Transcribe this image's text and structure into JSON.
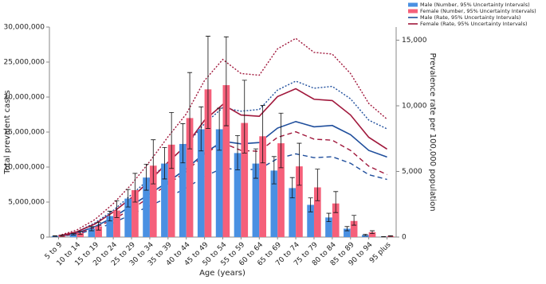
{
  "chart_data": {
    "type": "combo",
    "x_label": "Age (years)",
    "y_label": "Total prevalent cases",
    "y2_label": "Prevalence rate per 100,000 population",
    "categories": [
      "5 to 9",
      "10 to 14",
      "15 to 19",
      "20 to 24",
      "25 to 29",
      "30 to 34",
      "35 to 39",
      "40 to 44",
      "45 to 49",
      "50 to 54",
      "55 to 59",
      "60 to 64",
      "65 to 69",
      "70 to 74",
      "75 to 79",
      "80 to 84",
      "85 to 89",
      "90 to 94",
      "95 plus"
    ],
    "ylim": [
      0,
      30000000
    ],
    "yticks": [
      0,
      {
        "value": 5000000,
        "label": "5,000,000"
      },
      {
        "value": 10000000,
        "label": "10,000,000"
      },
      {
        "value": 15000000,
        "label": "15,000,000"
      },
      {
        "value": 20000000,
        "label": "20,000,000"
      },
      {
        "value": 25000000,
        "label": "25,000,000"
      },
      {
        "value": 30000000,
        "label": "30,000,000"
      }
    ],
    "y2lim": [
      0,
      16000
    ],
    "y2ticks": [
      0,
      {
        "value": 5000,
        "label": "5,000"
      },
      {
        "value": 10000,
        "label": "10,000"
      },
      {
        "value": 15000,
        "label": "15,000"
      }
    ],
    "series": [
      {
        "name": "Male (Number, 95% Uncertainty Intervals)",
        "type": "bar",
        "color": "#4a90e2",
        "values": [
          150000,
          400000,
          1200000,
          3000000,
          5500000,
          8500000,
          10500000,
          13300000,
          15400000,
          15400000,
          12000000,
          10500000,
          9500000,
          7000000,
          4600000,
          2800000,
          1200000,
          300000,
          50000
        ],
        "lower": [
          100000,
          300000,
          900000,
          2300000,
          4300000,
          6700000,
          8300000,
          10600000,
          12300000,
          12400000,
          9600000,
          8400000,
          7600000,
          5600000,
          3600000,
          2200000,
          900000,
          200000,
          30000
        ],
        "upper": [
          200000,
          500000,
          1500000,
          3700000,
          6800000,
          10400000,
          12800000,
          16200000,
          18600000,
          18400000,
          14500000,
          12600000,
          11500000,
          8500000,
          5600000,
          3400000,
          1500000,
          400000,
          70000
        ]
      },
      {
        "name": "Female (Number, 95% Uncertainty Intervals)",
        "type": "bar",
        "color": "#f5607a",
        "values": [
          200000,
          600000,
          1500000,
          3800000,
          6700000,
          10200000,
          13200000,
          17000000,
          21100000,
          21700000,
          16300000,
          14400000,
          13400000,
          10100000,
          7100000,
          4800000,
          2300000,
          700000,
          150000
        ],
        "lower": [
          100000,
          400000,
          1000000,
          2800000,
          5000000,
          7600000,
          9800000,
          12600000,
          15500000,
          15900000,
          12000000,
          10600000,
          9900000,
          7400000,
          5200000,
          3500000,
          1700000,
          500000,
          100000
        ],
        "upper": [
          300000,
          800000,
          2100000,
          5200000,
          9100000,
          13900000,
          17800000,
          23500000,
          28700000,
          28600000,
          22400000,
          18800000,
          17700000,
          13400000,
          9700000,
          6500000,
          3100000,
          900000,
          200000
        ]
      },
      {
        "name": "Male (Rate, 95% Uncertainty Intervals)",
        "type": "line",
        "axis": "y2",
        "color": "#1f4e9c",
        "values": [
          50,
          300,
          800,
          1500,
          2400,
          3300,
          4200,
          5200,
          6400,
          7300,
          7100,
          7200,
          8300,
          8800,
          8400,
          8500,
          7800,
          6600,
          6100
        ],
        "lower": [
          40,
          220,
          580,
          1080,
          1730,
          2380,
          3020,
          3740,
          4610,
          5260,
          5110,
          5180,
          5980,
          6340,
          6050,
          6120,
          5620,
          4750,
          4390
        ],
        "upper": [
          70,
          400,
          1080,
          2030,
          3240,
          4460,
          5670,
          7020,
          8640,
          9860,
          9590,
          9720,
          11200,
          11880,
          11340,
          11480,
          10530,
          8910,
          8240
        ]
      },
      {
        "name": "Female (Rate, 95% Uncertainty Intervals)",
        "type": "line",
        "axis": "y2",
        "color": "#a0173b",
        "values": [
          80,
          400,
          1000,
          1900,
          3000,
          4300,
          5700,
          7000,
          8900,
          10100,
          9300,
          9200,
          10700,
          11300,
          10500,
          10400,
          9300,
          7600,
          6700
        ],
        "lower": [
          60,
          280,
          710,
          1350,
          2130,
          3050,
          4050,
          4970,
          6320,
          7170,
          6600,
          6530,
          7600,
          8020,
          7460,
          7380,
          6600,
          5400,
          4760
        ],
        "upper": [
          110,
          540,
          1340,
          2550,
          4020,
          5760,
          7640,
          9380,
          11930,
          13530,
          12460,
          12330,
          14340,
          15140,
          14070,
          13940,
          12460,
          10180,
          8980
        ]
      }
    ]
  }
}
